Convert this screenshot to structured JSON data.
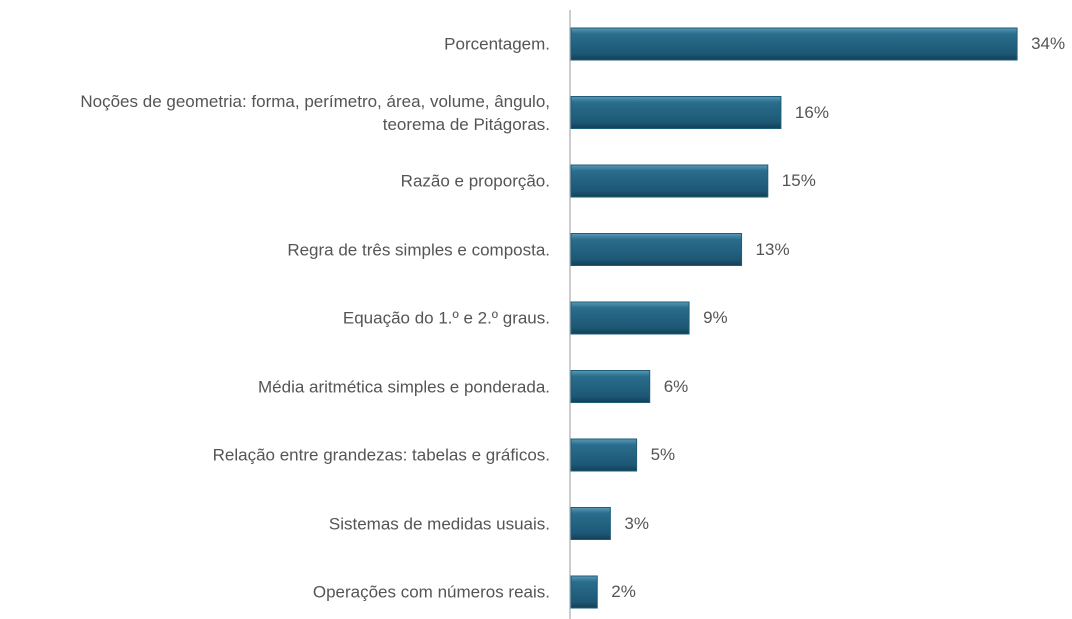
{
  "chart_data": {
    "type": "bar",
    "orientation": "horizontal",
    "color": "#1f5c7a",
    "categories": [
      "Porcentagem.",
      "Noções de geometria: forma, perímetro, área, volume, ângulo,\nteorema de Pitágoras.",
      "Razão e proporção.",
      "Regra de três simples e composta.",
      "Equação do 1.º e 2.º graus.",
      "Média aritmética simples e ponderada.",
      "Relação entre grandezas: tabelas e gráficos.",
      "Sistemas de medidas usuais.",
      "Operações com números reais."
    ],
    "values": [
      34,
      16,
      15,
      13,
      9,
      6,
      5,
      3,
      2
    ],
    "value_labels": [
      "34%",
      "16%",
      "15%",
      "13%",
      "9%",
      "6%",
      "5%",
      "3%",
      "2%"
    ]
  }
}
